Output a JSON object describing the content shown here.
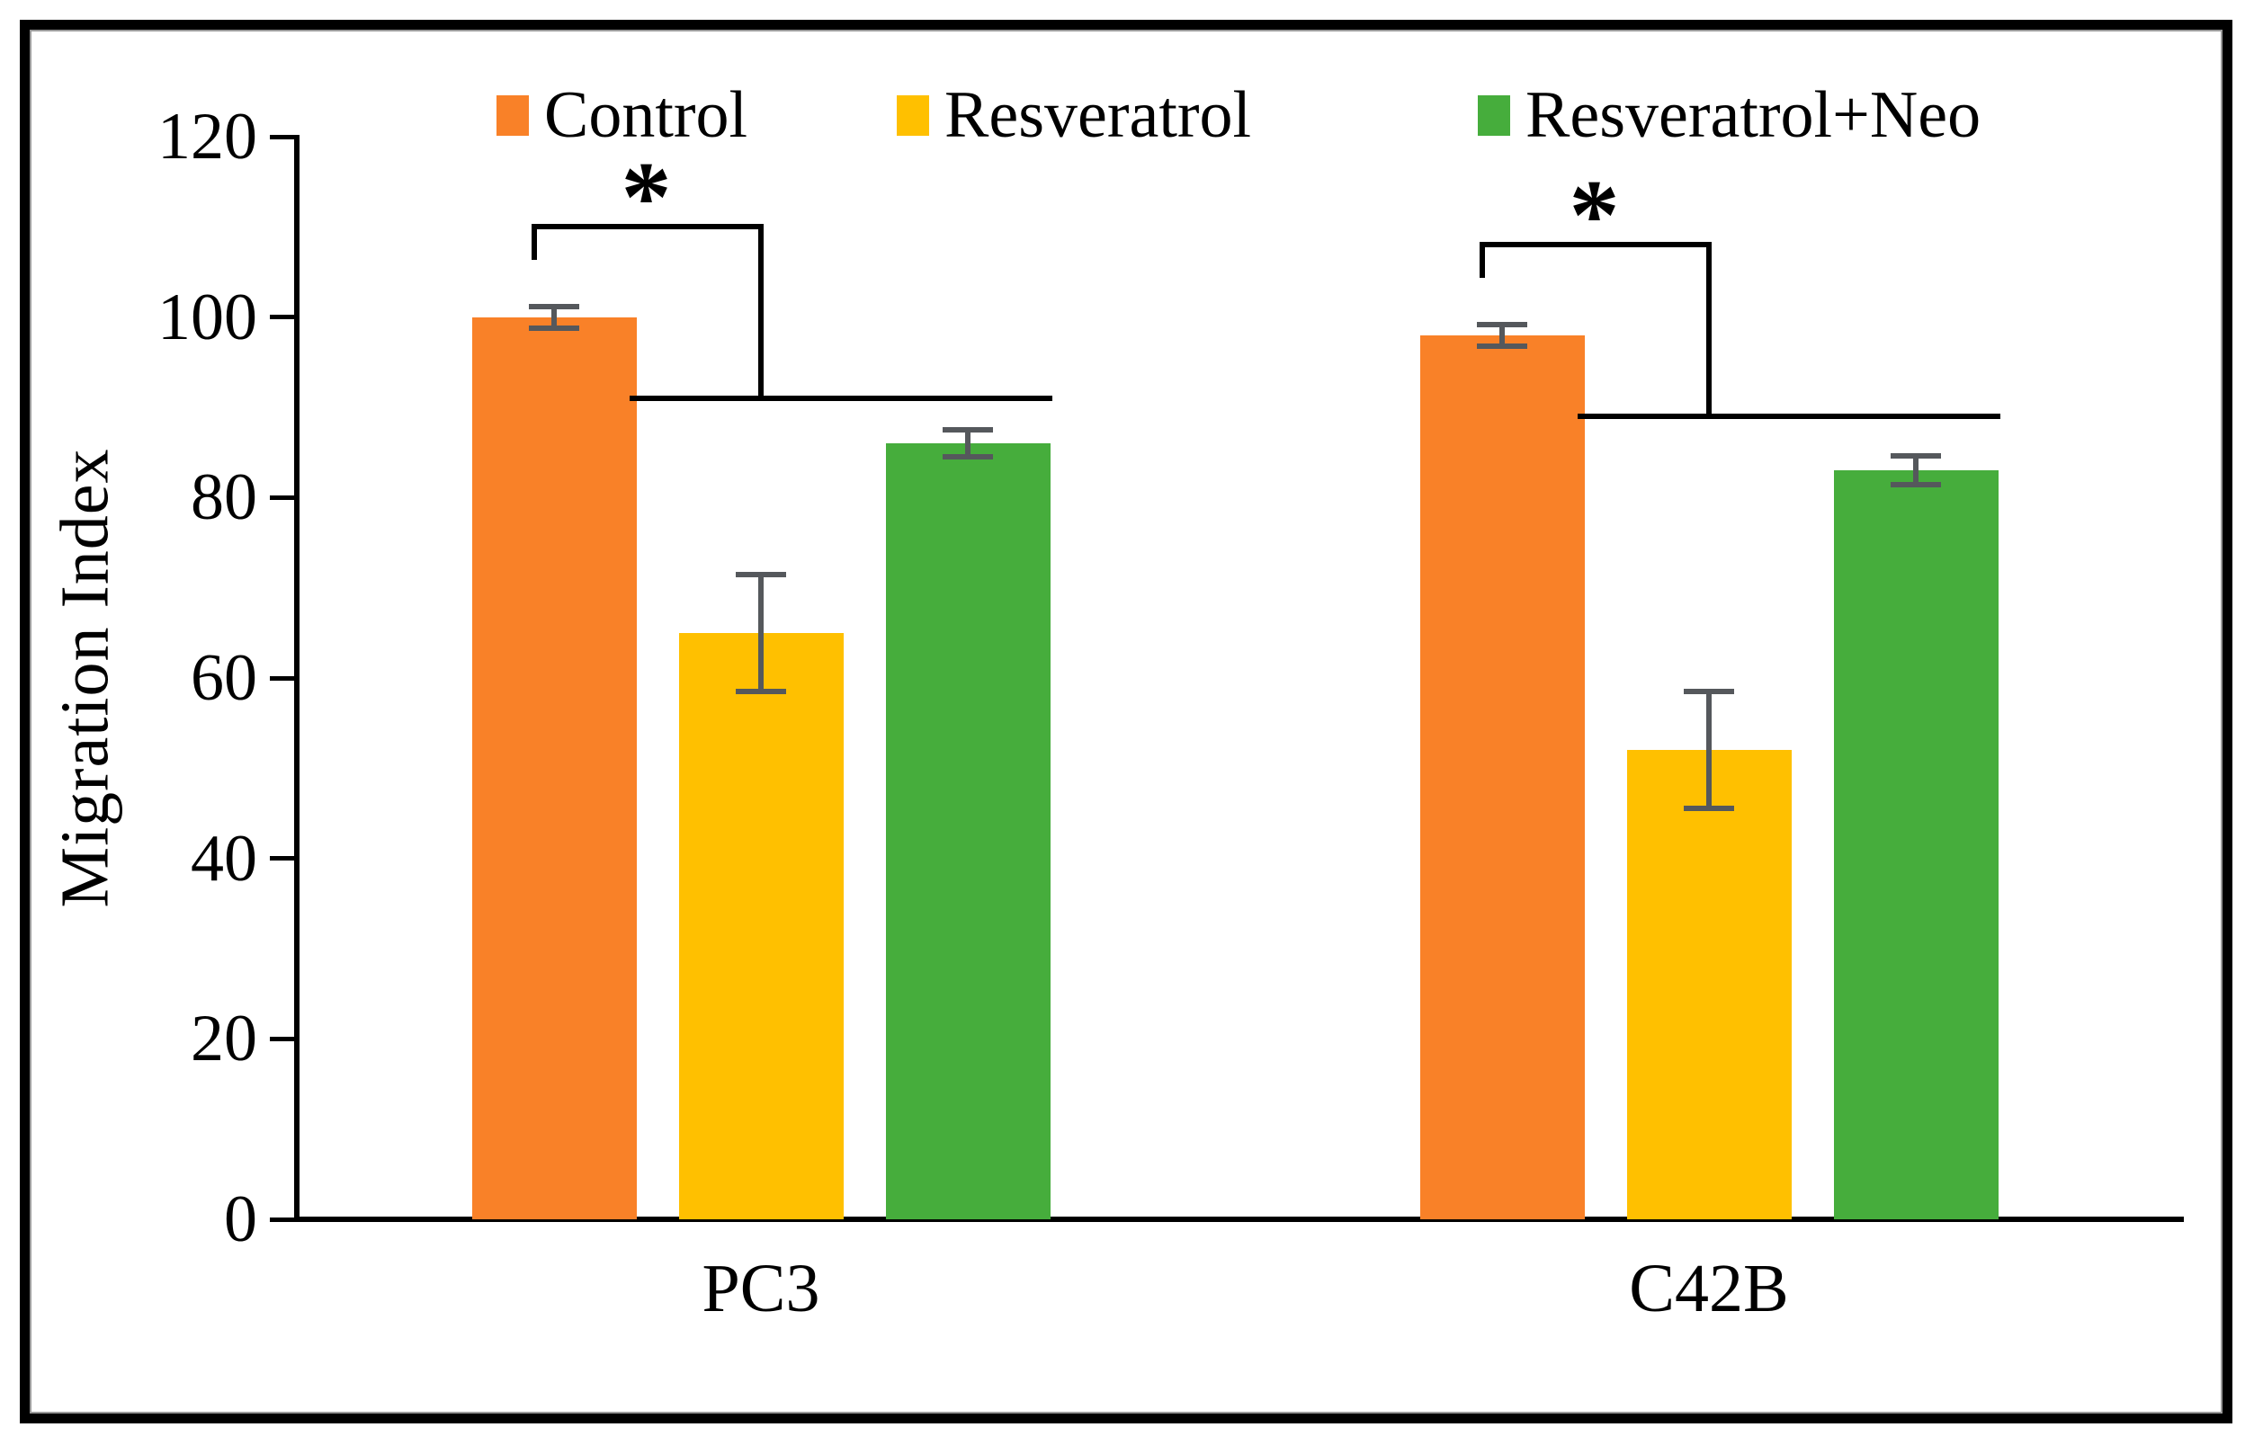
{
  "chart_data": {
    "type": "bar",
    "title": "",
    "ylabel": "Migration Index",
    "xlabel": "",
    "ylim": [
      0,
      120
    ],
    "yticks": [
      0,
      20,
      40,
      60,
      80,
      100,
      120
    ],
    "categories": [
      "PC3",
      "C42B"
    ],
    "series": [
      {
        "name": "Control",
        "color": "#F98128",
        "values": [
          100,
          98
        ],
        "errors": [
          1.2,
          1.2
        ]
      },
      {
        "name": "Resveratrol",
        "color": "#FFC000",
        "values": [
          65,
          52
        ],
        "errors": [
          6.5,
          6.5
        ]
      },
      {
        "name": "Resveratrol+Neo",
        "color": "#46AD3C",
        "values": [
          86,
          83
        ],
        "errors": [
          1.5,
          1.6
        ]
      }
    ],
    "error_bar_color": "#55585C",
    "legend_position": "top",
    "grid": false,
    "annotations": [
      {
        "category": "PC3",
        "symbol": "*",
        "bracket_top_value": 110,
        "bracket_span_value": 91,
        "connects": "Control vs Resveratrol and Resveratrol+Neo"
      },
      {
        "category": "C42B",
        "symbol": "*",
        "bracket_top_value": 108,
        "bracket_span_value": 89,
        "connects": "Control vs Resveratrol and Resveratrol+Neo"
      }
    ]
  }
}
